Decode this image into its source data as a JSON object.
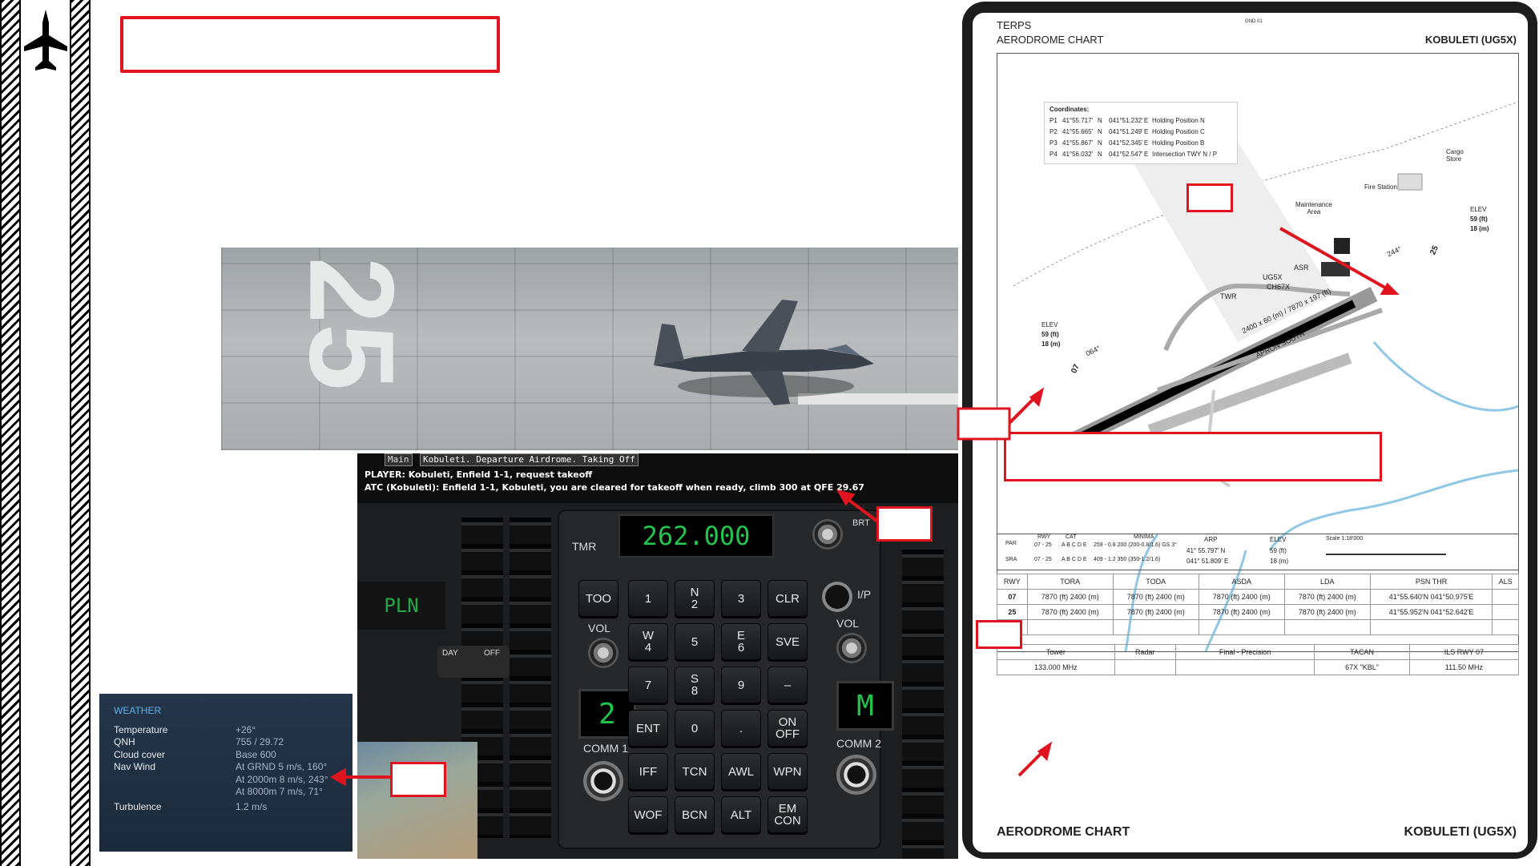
{
  "weather": {
    "title": "WEATHER",
    "rows": [
      {
        "label": "Temperature",
        "value": "+26°"
      },
      {
        "label": "QNH",
        "value": "755 / 29.72"
      },
      {
        "label": "Cloud cover",
        "value": "Base 600"
      },
      {
        "label": "Nav Wind",
        "value": "At GRND 5 m/s, 160°"
      },
      {
        "label": "",
        "value": "At 2000m 8 m/s, 243°"
      },
      {
        "label": "",
        "value": "At 8000m 7 m/s, 71°"
      },
      {
        "label": "Turbulence",
        "value": "1.2 m/s"
      }
    ]
  },
  "cockpit": {
    "tab_main": "Main",
    "tab_departure": "Kobuleti. Departure Airdrome. Taking Off",
    "player_msg": "PLAYER: Kobuleti, Enfield 1-1, request takeoff",
    "atc_msg": "ATC (Kobuleti): Enfield 1-1, Kobuleti, you are cleared for takeoff when ready, climb 300 at QFE 29.67",
    "frequency": "262.000",
    "tmr": "TMR",
    "pln": "PLN",
    "comm1_digit": "2",
    "comm2_digit": "M",
    "brt": "BRT",
    "labels": {
      "too": "TOO",
      "vol_left": "VOL",
      "vol_right": "VOL",
      "comm1": "COMM 1",
      "comm2": "COMM 2",
      "ip": "I/P",
      "day": "DAY",
      "off": "OFF"
    },
    "keys": [
      "1",
      "N\n2",
      "3",
      "CLR",
      "W\n4",
      "5",
      "E\n6",
      "SVE",
      "7",
      "S\n8",
      "9",
      "–",
      "ENT",
      "0",
      ".",
      "ON\nOFF",
      "IFF",
      "TCN",
      "AWL",
      "WPN",
      "WOF",
      "BCN",
      "ALT",
      "EM\nCON"
    ]
  },
  "runway_photo": {
    "marking": "25"
  },
  "chart": {
    "header_left1": "TERPS",
    "header_left2": "AERODROME CHART",
    "header_right": "KOBULETI (UG5X)",
    "gnd": "GND 01",
    "coords_title": "Coordinates:",
    "coords": [
      {
        "p": "P1",
        "lat": "41°55.717'",
        "ns": "N",
        "lon": "041°51.232'",
        "ew": "E",
        "desc": "Holding Position N"
      },
      {
        "p": "P2",
        "lat": "41°55.665'",
        "ns": "N",
        "lon": "041°51.249'",
        "ew": "E",
        "desc": "Holding Position C"
      },
      {
        "p": "P3",
        "lat": "41°55.867'",
        "ns": "N",
        "lon": "041°52.345'",
        "ew": "E",
        "desc": "Holding Position B"
      },
      {
        "p": "P4",
        "lat": "41°56.032'",
        "ns": "N",
        "lon": "041°52.547'",
        "ew": "E",
        "desc": "Intersection TWY N / P"
      }
    ],
    "map_labels": {
      "cargo": "Cargo\nStore",
      "fire": "Fire Station",
      "maint": "Maintenance\nArea",
      "elev_r": "ELEV",
      "elev_r_ft": "59 (ft)",
      "elev_r_m": "18 (m)",
      "elev_l": "ELEV",
      "elev_l_ft": "59 (ft)",
      "elev_l_m": "18 (m)",
      "asr": "ASR",
      "twr": "TWR",
      "ug5x": "UG5X",
      "ch": "CH67X",
      "rwy_dims": "2400 x 60 (m) / 7870 x 197 (ft)",
      "apron": "APRON SOUTH",
      "hdg_left": "064°",
      "hdg_right": "244°",
      "rwy_07": "07",
      "rwy_25": "25"
    },
    "minima": {
      "par": "PAR",
      "sra": "SRA",
      "rwy_h": "RWY",
      "cat_h": "CAT",
      "min_h": "MINIMA",
      "par_rwy": "07 - 25",
      "par_cat": "A B C D E",
      "par_min": "259 - 0.8 200 (200-0.8/1.6) GS 3°",
      "sra_rwy": "07 - 25",
      "sra_cat": "A B C D E",
      "sra_min": "409 - 1.2 350 (350-1.2/1.6)",
      "arp_h": "ARP",
      "arp1": "41° 55.797' N",
      "arp2": "041° 51.809' E",
      "elev_h": "ELEV",
      "elev1": "59 (ft)",
      "elev2": "18 (m)",
      "scale": "Scale 1:18'000"
    },
    "rwy_table": {
      "headers": [
        "RWY",
        "TORA",
        "TODA",
        "ASDA",
        "LDA",
        "PSN THR",
        "ALS"
      ],
      "rows": [
        [
          "07",
          "7870 (ft) 2400 (m)",
          "7870 (ft) 2400 (m)",
          "7870 (ft) 2400 (m)",
          "7870 (ft) 2400 (m)",
          "41°55.640'N 041°50.975'E",
          ""
        ],
        [
          "25",
          "7870 (ft) 2400 (m)",
          "7870 (ft) 2400 (m)",
          "7870 (ft) 2400 (m)",
          "7870 (ft) 2400 (m)",
          "41°55.952'N 041°52.642'E",
          ""
        ]
      ]
    },
    "freq_table": {
      "headers": [
        "Tower",
        "Radar",
        "Final - Precision",
        "TACAN",
        "ILS RWY 07"
      ],
      "values": [
        "133.000 MHz",
        "",
        "",
        "67X \"KBL\"",
        "111.50 MHz"
      ]
    },
    "footer_left": "AERODROME CHART",
    "footer_right": "KOBULETI (UG5X)"
  },
  "colors": {
    "accent_red": "#e0141e",
    "digital_green": "#22c44e",
    "weather_bg": "#1f2e40"
  }
}
